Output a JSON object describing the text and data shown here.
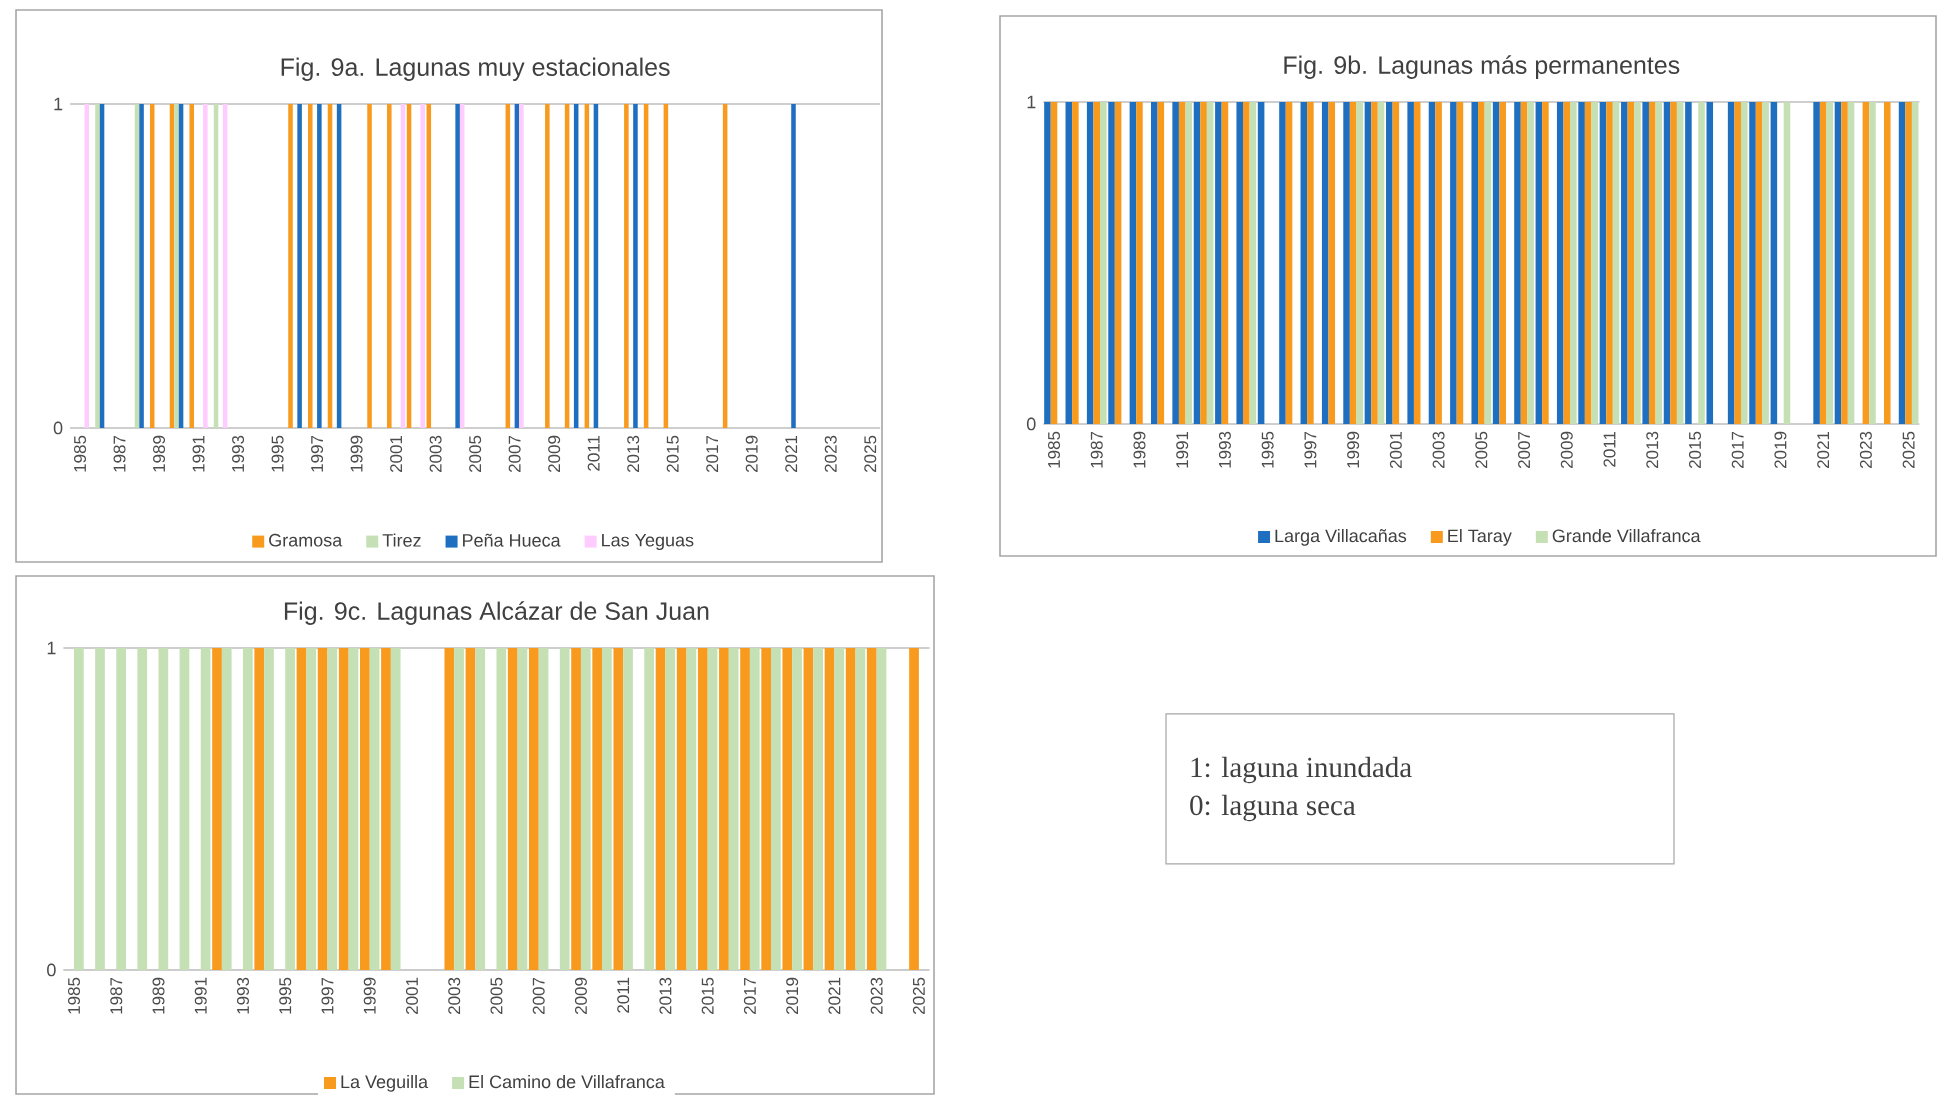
{
  "chart_data": [
    {
      "type": "bar",
      "title": "Fig. 9a. Lagunas muy estacionales",
      "categories": [
        "1985",
        null,
        "1987",
        null,
        "1989",
        null,
        "1991",
        null,
        "1993",
        null,
        "1995",
        null,
        "1997",
        null,
        "1999",
        null,
        "2001",
        null,
        "2003",
        null,
        "2005",
        null,
        "2007",
        null,
        "2009",
        null,
        "2011",
        null,
        "2013",
        null,
        "2015",
        null,
        "2017",
        null,
        "2019",
        null,
        "2021",
        null,
        "2023",
        null,
        "2025"
      ],
      "series": [
        {
          "name": "Gramosa",
          "color": "#f79a1e",
          "values": [
            0,
            0,
            0,
            0,
            1,
            1,
            1,
            0,
            0,
            0,
            0,
            1,
            1,
            1,
            0,
            1,
            1,
            1,
            1,
            0,
            0,
            0,
            1,
            0,
            1,
            1,
            1,
            0,
            1,
            1,
            1,
            0,
            0,
            1,
            0,
            0,
            0,
            0,
            0,
            0,
            0
          ]
        },
        {
          "name": "Tirez",
          "color": "#c5e0b4",
          "values": [
            0,
            1,
            0,
            1,
            0,
            1,
            0,
            1,
            0,
            0,
            0,
            0,
            0,
            0,
            0,
            0,
            0,
            0,
            0,
            0,
            0,
            0,
            0,
            0,
            0,
            0,
            0,
            0,
            0,
            0,
            0,
            0,
            0,
            0,
            0,
            0,
            0,
            0,
            0,
            0,
            0
          ]
        },
        {
          "name": "Peña Hueca",
          "color": "#1f6fc0",
          "values": [
            0,
            1,
            0,
            1,
            0,
            1,
            0,
            0,
            0,
            0,
            0,
            1,
            1,
            1,
            0,
            0,
            0,
            0,
            0,
            1,
            0,
            0,
            1,
            0,
            0,
            1,
            1,
            0,
            1,
            0,
            0,
            0,
            0,
            0,
            0,
            0,
            1,
            0,
            0,
            0,
            0
          ]
        },
        {
          "name": "Las Yeguas",
          "color": "#ffccff",
          "values": [
            1,
            0,
            0,
            0,
            0,
            0,
            1,
            1,
            0,
            0,
            0,
            0,
            0,
            0,
            0,
            0,
            1,
            1,
            0,
            1,
            0,
            0,
            1,
            0,
            0,
            0,
            0,
            0,
            0,
            0,
            0,
            0,
            0,
            0,
            0,
            0,
            0,
            0,
            0,
            0,
            0
          ]
        }
      ],
      "ylim": [
        0,
        1
      ],
      "yticks": [
        0,
        1
      ],
      "grid": "y",
      "legend": "bottom"
    },
    {
      "type": "bar",
      "title": "Fig. 9b. Lagunas más permanentes",
      "categories": [
        "1985",
        null,
        "1987",
        null,
        "1989",
        null,
        "1991",
        null,
        "1993",
        null,
        "1995",
        null,
        "1997",
        null,
        "1999",
        null,
        "2001",
        null,
        "2003",
        null,
        "2005",
        null,
        "2007",
        null,
        "2009",
        null,
        "2011",
        null,
        "2013",
        null,
        "2015",
        null,
        "2017",
        null,
        "2019",
        null,
        "2021",
        null,
        "2023",
        null,
        "2025"
      ],
      "series": [
        {
          "name": "Larga Villacañas",
          "color": "#1f6fc0",
          "values": [
            1,
            1,
            1,
            1,
            1,
            1,
            1,
            1,
            1,
            1,
            1,
            1,
            1,
            1,
            1,
            1,
            1,
            1,
            1,
            1,
            1,
            1,
            1,
            1,
            1,
            1,
            1,
            1,
            1,
            1,
            1,
            1,
            1,
            1,
            1,
            0,
            1,
            1,
            0,
            0,
            1
          ]
        },
        {
          "name": "El Taray",
          "color": "#f79a1e",
          "values": [
            1,
            1,
            1,
            1,
            1,
            1,
            1,
            1,
            1,
            1,
            0,
            1,
            1,
            1,
            1,
            1,
            1,
            1,
            1,
            1,
            1,
            1,
            1,
            1,
            1,
            1,
            1,
            1,
            1,
            1,
            0,
            0,
            1,
            1,
            0,
            0,
            1,
            1,
            1,
            1,
            1
          ]
        },
        {
          "name": "Grande Villafranca",
          "color": "#c5e0b4",
          "values": [
            0,
            0,
            1,
            0,
            0,
            0,
            1,
            1,
            0,
            1,
            0,
            0,
            0,
            0,
            1,
            1,
            0,
            0,
            0,
            0,
            1,
            0,
            1,
            0,
            1,
            1,
            1,
            1,
            1,
            1,
            1,
            0,
            1,
            1,
            1,
            0,
            1,
            1,
            1,
            0,
            1
          ]
        }
      ],
      "ylim": [
        0,
        1
      ],
      "yticks": [
        0,
        1
      ],
      "grid": "y",
      "legend": "bottom"
    },
    {
      "type": "bar",
      "title": "Fig. 9c. Lagunas Alcázar de San Juan",
      "categories": [
        "1985",
        null,
        "1987",
        null,
        "1989",
        null,
        "1991",
        null,
        "1993",
        null,
        "1995",
        null,
        "1997",
        null,
        "1999",
        null,
        "2001",
        null,
        "2003",
        null,
        "2005",
        null,
        "2007",
        null,
        "2009",
        null,
        "2011",
        null,
        "2013",
        null,
        "2015",
        null,
        "2017",
        null,
        "2019",
        null,
        "2021",
        null,
        "2023",
        null,
        "2025"
      ],
      "series": [
        {
          "name": "La Veguilla",
          "color": "#f79a1e",
          "values": [
            0,
            0,
            0,
            0,
            0,
            0,
            0,
            1,
            0,
            1,
            0,
            1,
            1,
            1,
            1,
            1,
            0,
            0,
            1,
            1,
            0,
            1,
            1,
            0,
            1,
            1,
            1,
            0,
            1,
            1,
            1,
            1,
            1,
            1,
            1,
            1,
            1,
            1,
            1,
            0,
            1
          ]
        },
        {
          "name": "El Camino de Villafranca",
          "color": "#c5e0b4",
          "values": [
            1,
            1,
            1,
            1,
            1,
            1,
            1,
            1,
            1,
            1,
            1,
            1,
            1,
            1,
            1,
            1,
            0,
            0,
            1,
            1,
            1,
            1,
            1,
            1,
            1,
            1,
            1,
            1,
            1,
            1,
            1,
            1,
            1,
            1,
            1,
            1,
            1,
            1,
            1,
            0,
            0
          ]
        }
      ],
      "ylim": [
        0,
        1
      ],
      "yticks": [
        0,
        1
      ],
      "grid": "y",
      "legend": "bottom"
    },
    {
      "type": "other",
      "annotations": [
        "1: laguna inundada",
        "0: laguna seca"
      ]
    }
  ]
}
